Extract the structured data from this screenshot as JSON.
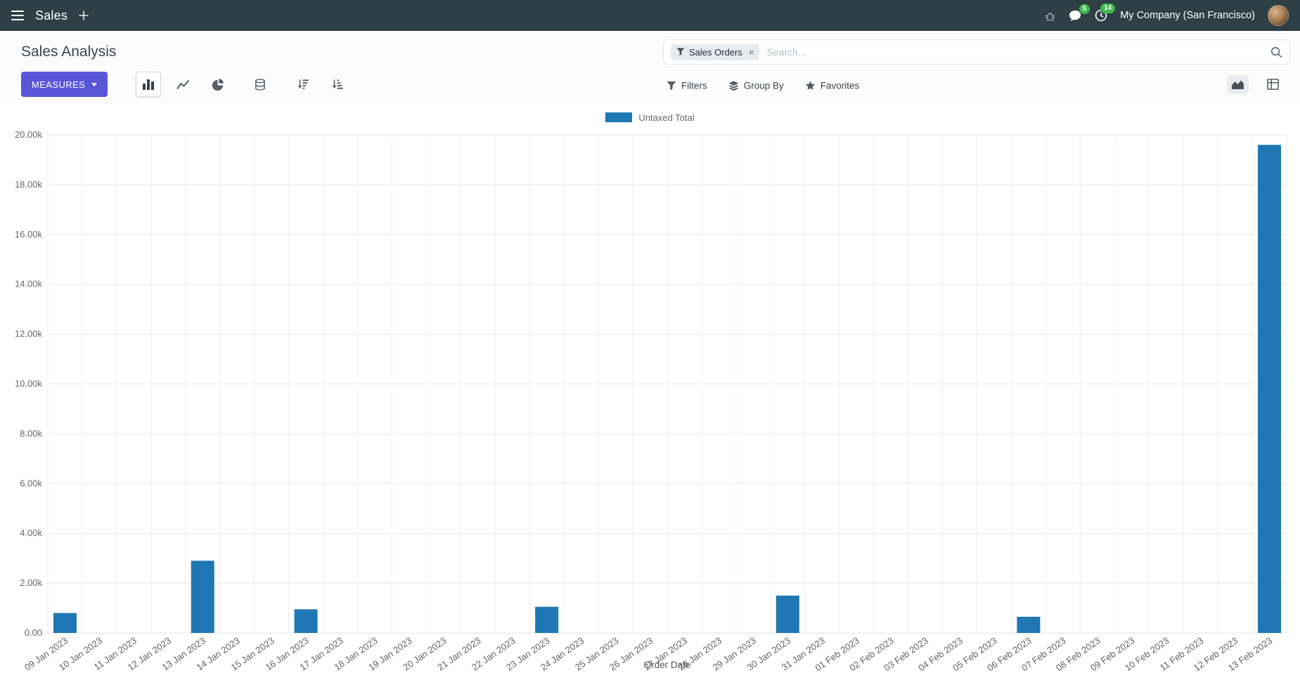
{
  "navbar": {
    "app_name": "Sales",
    "company": "My Company (San Francisco)",
    "messages_badge": "5",
    "activities_badge": "14"
  },
  "control_panel": {
    "title": "Sales Analysis",
    "search": {
      "facet_label": "Sales Orders",
      "facet_remove": "×",
      "placeholder": "Search..."
    },
    "measures_label": "MEASURES",
    "filters_label": "Filters",
    "group_by_label": "Group By",
    "favorites_label": "Favorites"
  },
  "colors": {
    "navbar_bg": "#2e3f45",
    "primary_button": "#5b56d8",
    "badge": "#3eb94c",
    "bar": "#1f77b4"
  },
  "icons": {
    "menu-icon": "hamburger",
    "plus-icon": "plus",
    "bug-icon": "bug",
    "messages-icon": "speech-bubble",
    "activities-icon": "clock",
    "search-icon": "magnifier",
    "filter-icon": "funnel",
    "group-by-icon": "layers",
    "favorites-icon": "star",
    "bar-chart-icon": "vertical-bars",
    "line-chart-icon": "polyline",
    "pie-chart-icon": "pie",
    "stacked-icon": "database",
    "sort-desc-icon": "sort-amount-desc",
    "sort-asc-icon": "sort-amount-asc",
    "graph-view-icon": "area-chart",
    "pivot-view-icon": "pivot-table"
  },
  "chart_data": {
    "type": "bar",
    "title": "",
    "xlabel": "Order Date",
    "ylabel": "",
    "ylim": [
      0,
      20000
    ],
    "y_tick_labels": [
      "0.00",
      "2.00k",
      "4.00k",
      "6.00k",
      "8.00k",
      "10.00k",
      "12.00k",
      "14.00k",
      "16.00k",
      "18.00k",
      "20.00k"
    ],
    "grid": true,
    "legend_position": "top-center",
    "bar_color": "#1f77b4",
    "categories": [
      "09 Jan 2023",
      "10 Jan 2023",
      "11 Jan 2023",
      "12 Jan 2023",
      "13 Jan 2023",
      "14 Jan 2023",
      "15 Jan 2023",
      "16 Jan 2023",
      "17 Jan 2023",
      "18 Jan 2023",
      "19 Jan 2023",
      "20 Jan 2023",
      "21 Jan 2023",
      "22 Jan 2023",
      "23 Jan 2023",
      "24 Jan 2023",
      "25 Jan 2023",
      "26 Jan 2023",
      "27 Jan 2023",
      "28 Jan 2023",
      "29 Jan 2023",
      "30 Jan 2023",
      "31 Jan 2023",
      "01 Feb 2023",
      "02 Feb 2023",
      "03 Feb 2023",
      "04 Feb 2023",
      "05 Feb 2023",
      "06 Feb 2023",
      "07 Feb 2023",
      "08 Feb 2023",
      "09 Feb 2023",
      "10 Feb 2023",
      "11 Feb 2023",
      "12 Feb 2023",
      "13 Feb 2023"
    ],
    "series": [
      {
        "name": "Untaxed Total",
        "values": [
          800,
          0,
          0,
          0,
          2900,
          0,
          0,
          950,
          0,
          0,
          0,
          0,
          0,
          0,
          1050,
          0,
          0,
          0,
          0,
          0,
          0,
          1500,
          0,
          0,
          0,
          0,
          0,
          0,
          650,
          0,
          0,
          0,
          0,
          0,
          0,
          19600
        ]
      }
    ]
  }
}
